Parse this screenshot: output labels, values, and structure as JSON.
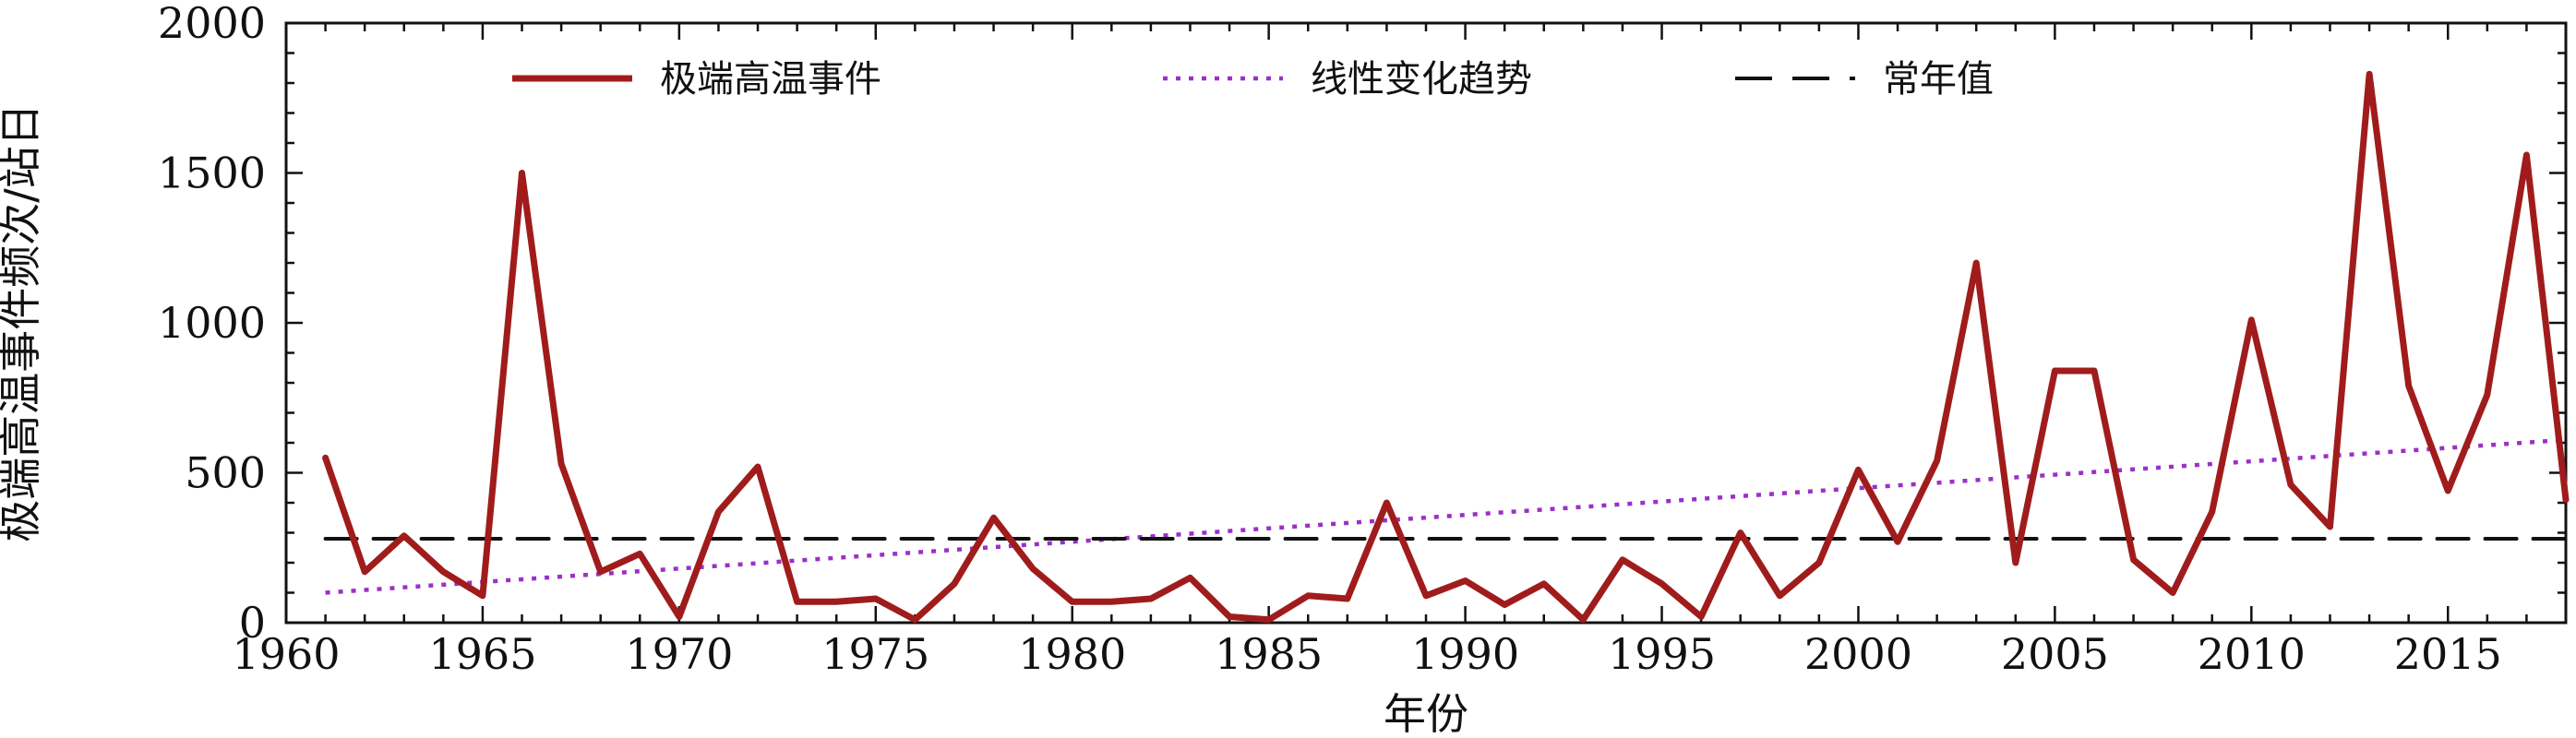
{
  "chart_data": {
    "type": "line",
    "xlabel": "年份",
    "ylabel": "极端高温事件频次/站日",
    "xlim": [
      1960,
      2018
    ],
    "ylim": [
      0,
      2000
    ],
    "x_ticks": [
      1960,
      1965,
      1970,
      1975,
      1980,
      1985,
      1990,
      1995,
      2000,
      2005,
      2010,
      2015
    ],
    "y_ticks": [
      0,
      500,
      1000,
      1500,
      2000
    ],
    "legend_position": "top",
    "grid": false,
    "series": [
      {
        "name": "极端高温事件",
        "style": "solid",
        "color": "#a01c1c",
        "x": [
          1961,
          1962,
          1963,
          1964,
          1965,
          1966,
          1967,
          1968,
          1969,
          1970,
          1971,
          1972,
          1973,
          1974,
          1975,
          1976,
          1977,
          1978,
          1979,
          1980,
          1981,
          1982,
          1983,
          1984,
          1985,
          1986,
          1987,
          1988,
          1989,
          1990,
          1991,
          1992,
          1993,
          1994,
          1995,
          1996,
          1997,
          1998,
          1999,
          2000,
          2001,
          2002,
          2003,
          2004,
          2005,
          2006,
          2007,
          2008,
          2009,
          2010,
          2011,
          2012,
          2013,
          2014,
          2015,
          2016,
          2017,
          2018
        ],
        "values": [
          550,
          170,
          290,
          170,
          90,
          1500,
          530,
          170,
          230,
          20,
          370,
          520,
          70,
          70,
          80,
          10,
          130,
          350,
          180,
          70,
          70,
          80,
          150,
          20,
          10,
          90,
          80,
          400,
          90,
          140,
          60,
          130,
          10,
          210,
          130,
          20,
          300,
          90,
          200,
          510,
          270,
          540,
          1200,
          200,
          840,
          840,
          210,
          100,
          370,
          1010,
          460,
          320,
          1830,
          790,
          440,
          760,
          1560,
          410
        ]
      },
      {
        "name": "线性变化趋势",
        "style": "dotted",
        "color": "#9b30c8",
        "x": [
          1961,
          2018
        ],
        "values": [
          100,
          610
        ]
      },
      {
        "name": "常年值",
        "style": "dashed",
        "color": "#111111",
        "x": [
          1961,
          2018
        ],
        "values": [
          280,
          280
        ]
      }
    ]
  }
}
